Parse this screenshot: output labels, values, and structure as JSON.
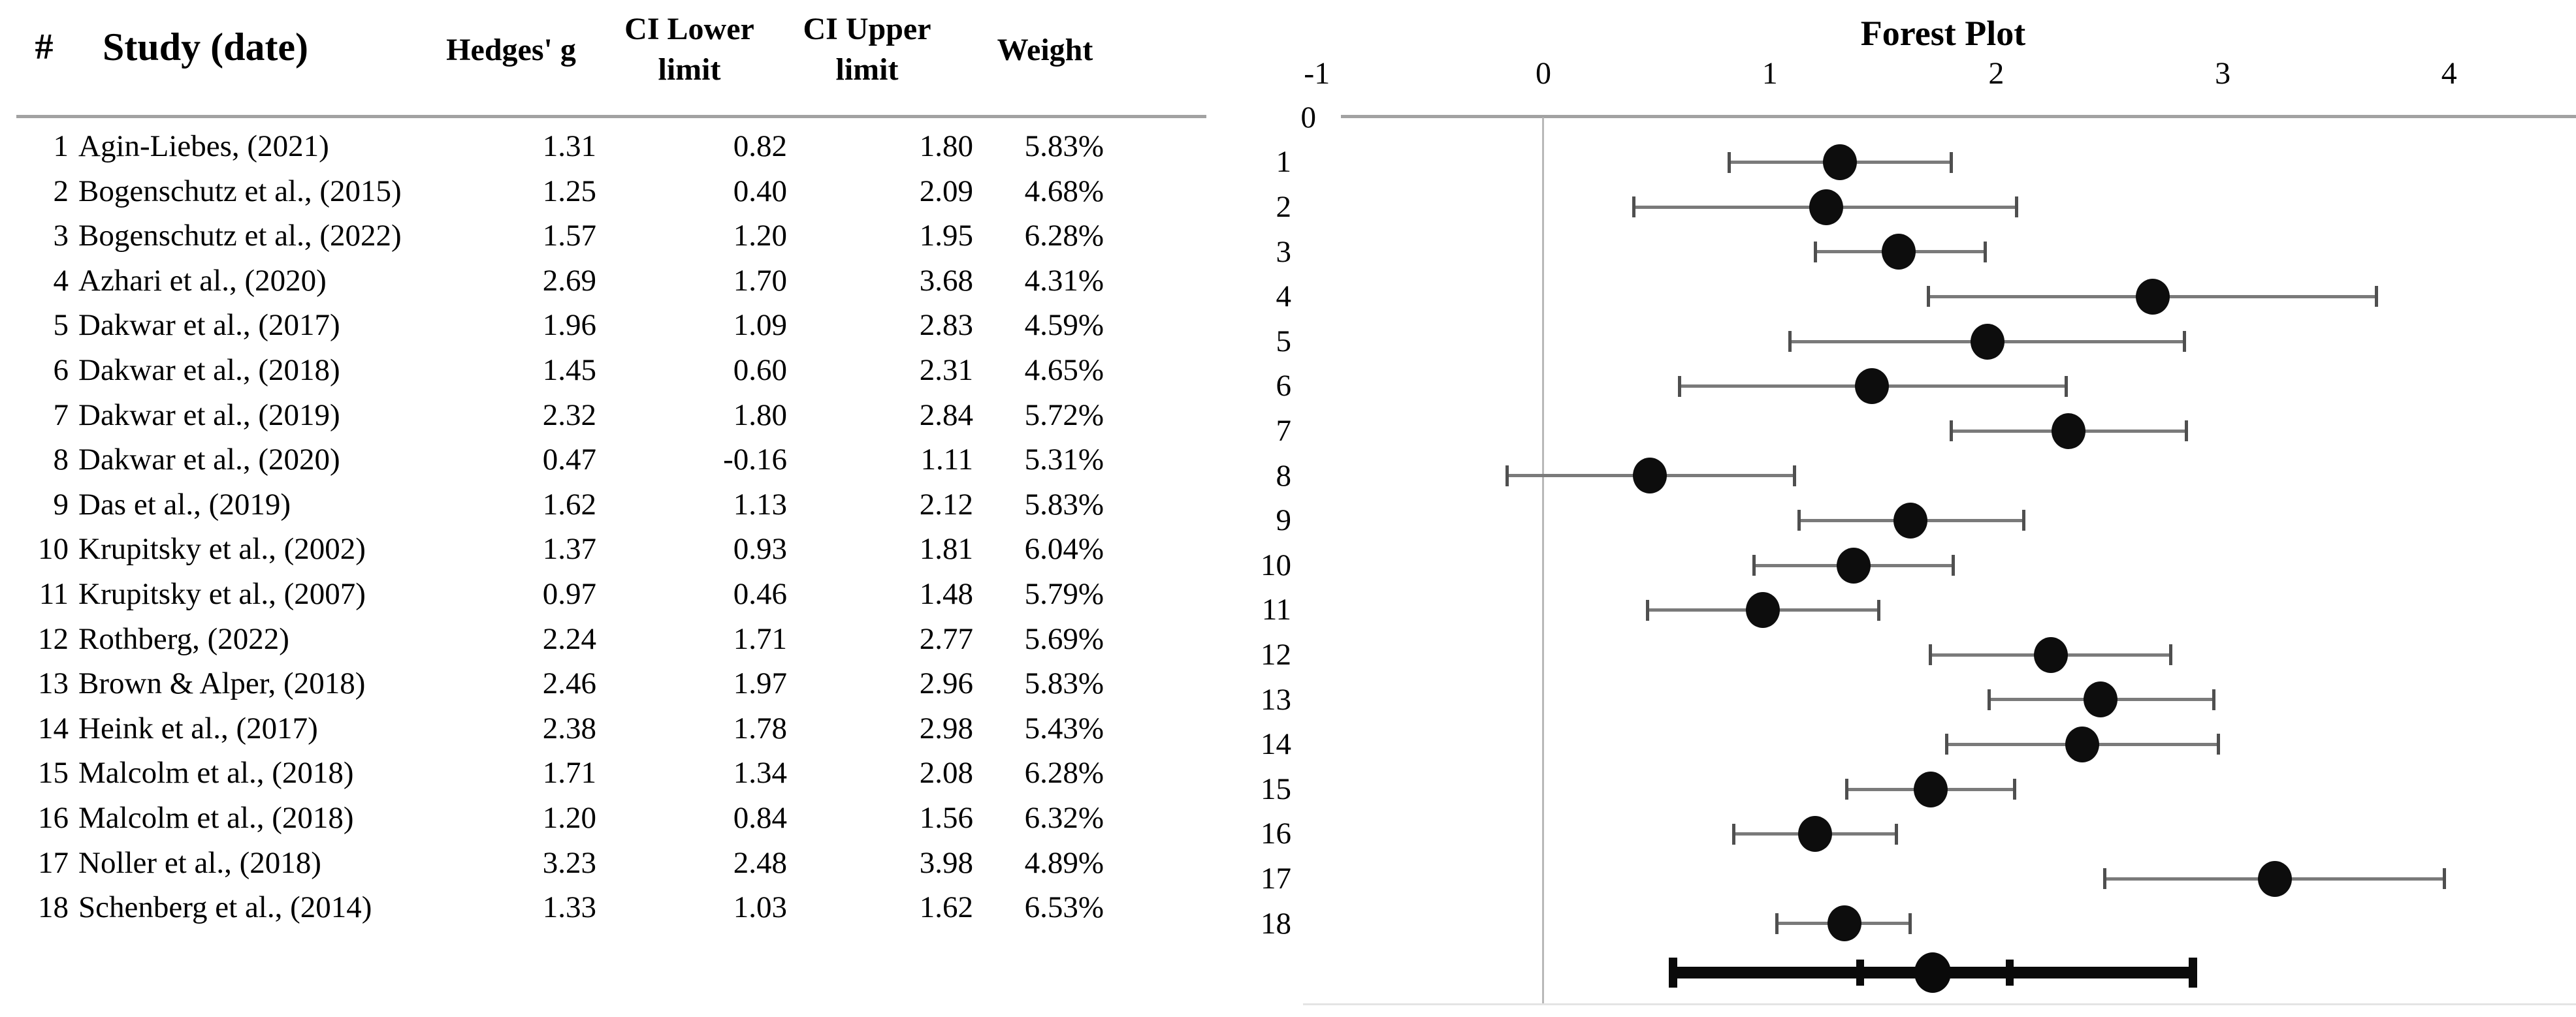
{
  "table": {
    "headers": {
      "num": "#",
      "study": "Study (date)",
      "g": "Hedges' g",
      "ci_lower_line1": "CI Lower",
      "ci_lower_line2": "limit",
      "ci_upper_line1": "CI Upper",
      "ci_upper_line2": "limit",
      "weight": "Weight"
    }
  },
  "chart_data": {
    "type": "scatter",
    "subtype": "forest-plot",
    "title": "Forest Plot",
    "xlabel": "",
    "ylabel": "",
    "x_ticks": [
      -1,
      0,
      1,
      2,
      3,
      4
    ],
    "xlim": [
      -1.06,
      4.56
    ],
    "grid": "off",
    "legend": "none",
    "y_row_labels": [
      "0",
      "1",
      "2",
      "3",
      "4",
      "5",
      "6",
      "7",
      "8",
      "9",
      "10",
      "11",
      "12",
      "13",
      "14",
      "15",
      "16",
      "17",
      "18"
    ],
    "studies": [
      {
        "num": "1",
        "study": "Agin-Liebes, (2021)",
        "g": 1.31,
        "lower": 0.82,
        "upper": 1.8,
        "weight": "5.83%"
      },
      {
        "num": "2",
        "study": "Bogenschutz et al., (2015)",
        "g": 1.25,
        "lower": 0.4,
        "upper": 2.09,
        "weight": "4.68%"
      },
      {
        "num": "3",
        "study": "Bogenschutz et al., (2022)",
        "g": 1.57,
        "lower": 1.2,
        "upper": 1.95,
        "weight": "6.28%"
      },
      {
        "num": "4",
        "study": "Azhari et al., (2020)",
        "g": 2.69,
        "lower": 1.7,
        "upper": 3.68,
        "weight": "4.31%"
      },
      {
        "num": "5",
        "study": "Dakwar et al., (2017)",
        "g": 1.96,
        "lower": 1.09,
        "upper": 2.83,
        "weight": "4.59%"
      },
      {
        "num": "6",
        "study": "Dakwar et al., (2018)",
        "g": 1.45,
        "lower": 0.6,
        "upper": 2.31,
        "weight": "4.65%"
      },
      {
        "num": "7",
        "study": "Dakwar et al., (2019)",
        "g": 2.32,
        "lower": 1.8,
        "upper": 2.84,
        "weight": "5.72%"
      },
      {
        "num": "8",
        "study": "Dakwar et al., (2020)",
        "g": 0.47,
        "lower": -0.16,
        "upper": 1.11,
        "weight": "5.31%"
      },
      {
        "num": "9",
        "study": "Das et al., (2019)",
        "g": 1.62,
        "lower": 1.13,
        "upper": 2.12,
        "weight": "5.83%"
      },
      {
        "num": "10",
        "study": "Krupitsky et al., (2002)",
        "g": 1.37,
        "lower": 0.93,
        "upper": 1.81,
        "weight": "6.04%"
      },
      {
        "num": "11",
        "study": "Krupitsky et al., (2007)",
        "g": 0.97,
        "lower": 0.46,
        "upper": 1.48,
        "weight": "5.79%"
      },
      {
        "num": "12",
        "study": "Rothberg, (2022)",
        "g": 2.24,
        "lower": 1.71,
        "upper": 2.77,
        "weight": "5.69%"
      },
      {
        "num": "13",
        "study": "Brown & Alper, (2018)",
        "g": 2.46,
        "lower": 1.97,
        "upper": 2.96,
        "weight": "5.83%"
      },
      {
        "num": "14",
        "study": "Heink et al., (2017)",
        "g": 2.38,
        "lower": 1.78,
        "upper": 2.98,
        "weight": "5.43%"
      },
      {
        "num": "15",
        "study": "Malcolm et al., (2018)",
        "g": 1.71,
        "lower": 1.34,
        "upper": 2.08,
        "weight": "6.28%"
      },
      {
        "num": "16",
        "study": "Malcolm et al., (2018)",
        "g": 1.2,
        "lower": 0.84,
        "upper": 1.56,
        "weight": "6.32%"
      },
      {
        "num": "17",
        "study": "Noller et al., (2018)",
        "g": 3.23,
        "lower": 2.48,
        "upper": 3.98,
        "weight": "4.89%"
      },
      {
        "num": "18",
        "study": "Schenberg et al., (2014)",
        "g": 1.33,
        "lower": 1.03,
        "upper": 1.62,
        "weight": "6.53%"
      }
    ],
    "summary": {
      "mean": 1.72,
      "ci_lower": 1.4,
      "ci_upper": 2.06,
      "bar_lower": 0.57,
      "bar_upper": 2.87
    }
  },
  "colors": {
    "text": "#000000",
    "axis_line": "#a2a2a2",
    "zero_line": "#b8b8b8",
    "bottom_line": "#e4e4e4",
    "error_bar": "#7a7a7a",
    "error_cap": "#4f4f4f",
    "marker": "#0d0d0d",
    "summary": "#0a0a0a",
    "background": "#ffffff"
  }
}
